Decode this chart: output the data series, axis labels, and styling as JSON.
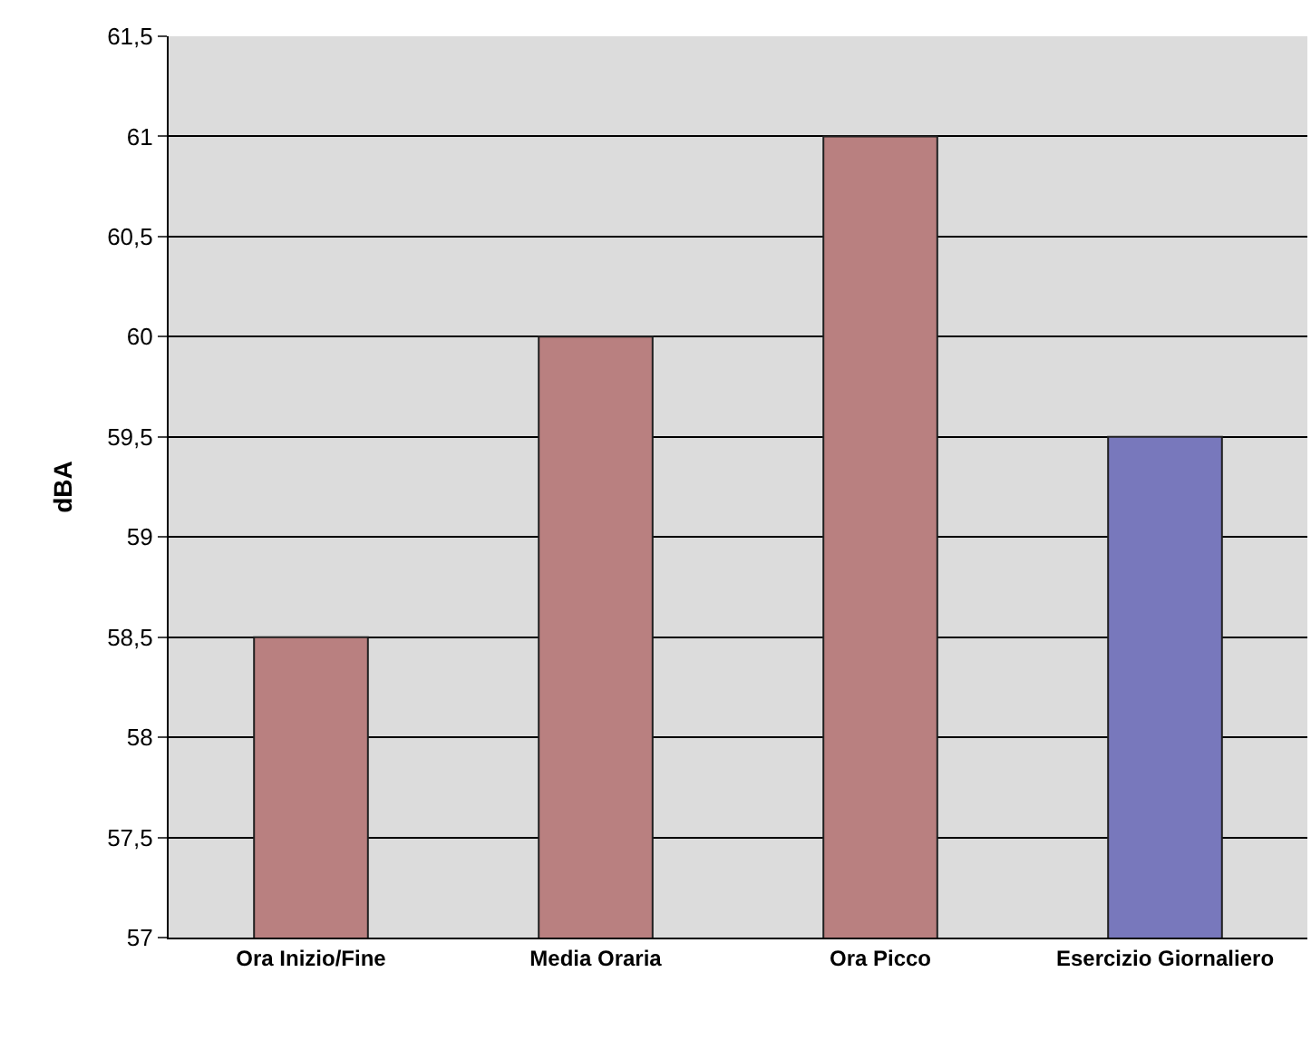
{
  "chart_data": {
    "type": "bar",
    "ylabel": "dBA",
    "categories": [
      "Ora Inizio/Fine",
      "Media Oraria",
      "Ora Picco",
      "Esercizio Giornaliero"
    ],
    "values": [
      58.5,
      60,
      61,
      59.5
    ],
    "colors": [
      "#b98080",
      "#b98080",
      "#b98080",
      "#7878bc"
    ],
    "ylim": [
      57,
      61.5
    ],
    "yticks": [
      57,
      {
        "value": 57.5,
        "label": "57,5"
      },
      58,
      {
        "value": 58.5,
        "label": "58,5"
      },
      59,
      {
        "value": 59.5,
        "label": "59,5"
      },
      60,
      {
        "value": 60.5,
        "label": "60,5"
      },
      61,
      {
        "value": 61.5,
        "label": "61,5"
      }
    ],
    "grid": "y",
    "legend": false
  }
}
